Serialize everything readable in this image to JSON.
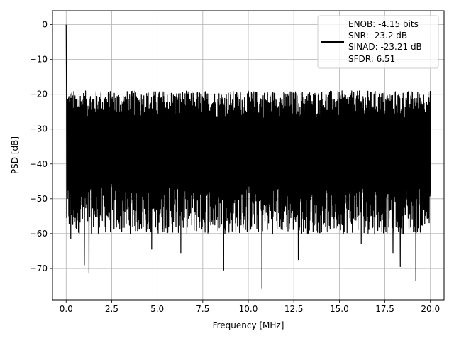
{
  "chart_data": {
    "type": "line",
    "title": "",
    "xlabel": "Frequency [MHz]",
    "ylabel": "PSD [dB]",
    "xlim": [
      -0.75,
      20.75
    ],
    "ylim": [
      -79,
      4
    ],
    "x_ticks": [
      0.0,
      2.5,
      5.0,
      7.5,
      10.0,
      12.5,
      15.0,
      17.5,
      20.0
    ],
    "x_tick_labels": [
      "0.0",
      "2.5",
      "5.0",
      "7.5",
      "10.0",
      "12.5",
      "15.0",
      "17.5",
      "20.0"
    ],
    "y_ticks": [
      0,
      -10,
      -20,
      -30,
      -40,
      -50,
      -60,
      -70
    ],
    "y_tick_labels": [
      "0",
      "−10",
      "−20",
      "−30",
      "−40",
      "−50",
      "−60",
      "−70"
    ],
    "grid": true,
    "legend_position": "top-right",
    "series": [
      {
        "name": "ENOB: -4.15 bits\nSNR: -23.2 dB\nSINAD: -23.21 dB\nSFDR: 6.51",
        "color": "#000000",
        "description_values": {
          "peak": {
            "x": 0.0,
            "y": 0.0
          },
          "noise_floor_top_band": [
            -25,
            -17
          ],
          "noise_floor_bottom_band": [
            -60,
            -45
          ],
          "deep_minima": [
            {
              "x": 1.25,
              "y": -71.2
            },
            {
              "x": 1.0,
              "y": -69.0
            },
            {
              "x": 8.65,
              "y": -70.5
            },
            {
              "x": 10.75,
              "y": -75.8
            },
            {
              "x": 12.75,
              "y": -67.5
            },
            {
              "x": 18.35,
              "y": -69.5
            },
            {
              "x": 19.2,
              "y": -73.5
            },
            {
              "x": 0.25,
              "y": -61.5
            },
            {
              "x": 4.7,
              "y": -64.5
            },
            {
              "x": 6.3,
              "y": -65.5
            },
            {
              "x": 16.2,
              "y": -63.0
            },
            {
              "x": 17.95,
              "y": -65.5
            }
          ],
          "x_range": [
            0.0,
            20.0
          ]
        }
      }
    ]
  },
  "legend": {
    "lines": [
      "ENOB: -4.15 bits",
      "SNR: -23.2 dB",
      "SINAD: -23.21 dB",
      "SFDR: 6.51"
    ]
  }
}
